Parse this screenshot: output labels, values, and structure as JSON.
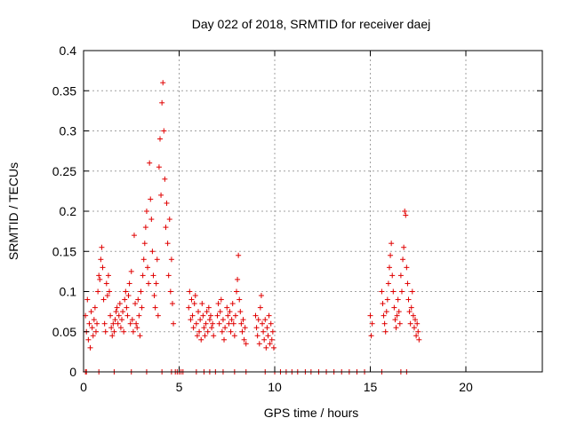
{
  "chart_data": {
    "type": "scatter",
    "title": "Day 022 of 2018, SRMTID for receiver daej",
    "xlabel": "GPS time / hours",
    "ylabel": "SRMTID / TECUs",
    "xlim": [
      0,
      24
    ],
    "ylim": [
      0,
      0.4
    ],
    "xticks": [
      0,
      5,
      10,
      15,
      20
    ],
    "yticks": [
      0,
      0.05,
      0.1,
      0.15,
      0.2,
      0.25,
      0.3,
      0.35,
      0.4
    ],
    "xtick_labels": [
      "0",
      "5",
      "10",
      "15",
      "20"
    ],
    "ytick_labels": [
      "0",
      "0.05",
      "0.1",
      "0.15",
      "0.2",
      "0.25",
      "0.3",
      "0.35",
      "0.4"
    ],
    "grid": true,
    "marker": "+",
    "color": "#e00000",
    "series": [
      {
        "name": "SRMTID",
        "points": [
          [
            0.1,
            0.07
          ],
          [
            0.15,
            0.05
          ],
          [
            0.2,
            0.09
          ],
          [
            0.25,
            0.04
          ],
          [
            0.3,
            0.06
          ],
          [
            0.35,
            0.03
          ],
          [
            0.4,
            0.075
          ],
          [
            0.45,
            0.055
          ],
          [
            0.5,
            0.045
          ],
          [
            0.55,
            0.065
          ],
          [
            0.6,
            0.08
          ],
          [
            0.65,
            0.05
          ],
          [
            0.7,
            0.06
          ],
          [
            0.75,
            0.1
          ],
          [
            0.8,
            0.12
          ],
          [
            0.85,
            0.115
          ],
          [
            0.9,
            0.14
          ],
          [
            0.95,
            0.155
          ],
          [
            1.0,
            0.13
          ],
          [
            1.05,
            0.09
          ],
          [
            1.1,
            0.06
          ],
          [
            1.15,
            0.05
          ],
          [
            1.2,
            0.11
          ],
          [
            1.25,
            0.095
          ],
          [
            1.3,
            0.12
          ],
          [
            1.35,
            0.1
          ],
          [
            1.4,
            0.07
          ],
          [
            1.45,
            0.055
          ],
          [
            1.5,
            0.045
          ],
          [
            1.55,
            0.06
          ],
          [
            1.6,
            0.05
          ],
          [
            1.65,
            0.065
          ],
          [
            1.7,
            0.075
          ],
          [
            1.75,
            0.08
          ],
          [
            1.8,
            0.06
          ],
          [
            1.85,
            0.07
          ],
          [
            1.9,
            0.085
          ],
          [
            1.95,
            0.055
          ],
          [
            2.0,
            0.065
          ],
          [
            2.05,
            0.075
          ],
          [
            2.1,
            0.05
          ],
          [
            2.15,
            0.09
          ],
          [
            2.2,
            0.1
          ],
          [
            2.25,
            0.08
          ],
          [
            2.3,
            0.07
          ],
          [
            2.35,
            0.095
          ],
          [
            2.4,
            0.11
          ],
          [
            2.45,
            0.06
          ],
          [
            2.5,
            0.125
          ],
          [
            2.55,
            0.065
          ],
          [
            2.6,
            0.05
          ],
          [
            2.65,
            0.17
          ],
          [
            2.7,
            0.085
          ],
          [
            2.75,
            0.06
          ],
          [
            2.8,
            0.055
          ],
          [
            2.85,
            0.09
          ],
          [
            2.9,
            0.07
          ],
          [
            2.95,
            0.045
          ],
          [
            3.0,
            0.1
          ],
          [
            3.05,
            0.08
          ],
          [
            3.1,
            0.12
          ],
          [
            3.15,
            0.14
          ],
          [
            3.2,
            0.16
          ],
          [
            3.25,
            0.18
          ],
          [
            3.3,
            0.2
          ],
          [
            3.35,
            0.13
          ],
          [
            3.4,
            0.11
          ],
          [
            3.45,
            0.26
          ],
          [
            3.5,
            0.215
          ],
          [
            3.55,
            0.19
          ],
          [
            3.6,
            0.15
          ],
          [
            3.65,
            0.12
          ],
          [
            3.7,
            0.095
          ],
          [
            3.75,
            0.08
          ],
          [
            3.8,
            0.11
          ],
          [
            3.85,
            0.14
          ],
          [
            3.9,
            0.07
          ],
          [
            3.95,
            0.255
          ],
          [
            4.0,
            0.29
          ],
          [
            4.05,
            0.22
          ],
          [
            4.1,
            0.335
          ],
          [
            4.15,
            0.36
          ],
          [
            4.2,
            0.3
          ],
          [
            4.25,
            0.24
          ],
          [
            4.3,
            0.18
          ],
          [
            4.35,
            0.21
          ],
          [
            4.4,
            0.16
          ],
          [
            4.45,
            0.12
          ],
          [
            4.5,
            0.19
          ],
          [
            4.55,
            0.1
          ],
          [
            4.6,
            0.14
          ],
          [
            4.65,
            0.085
          ],
          [
            4.7,
            0.06
          ],
          [
            5.5,
            0.08
          ],
          [
            5.55,
            0.1
          ],
          [
            5.6,
            0.065
          ],
          [
            5.65,
            0.09
          ],
          [
            5.7,
            0.07
          ],
          [
            5.75,
            0.055
          ],
          [
            5.8,
            0.085
          ],
          [
            5.85,
            0.095
          ],
          [
            5.9,
            0.06
          ],
          [
            5.95,
            0.045
          ],
          [
            6.0,
            0.075
          ],
          [
            6.05,
            0.05
          ],
          [
            6.1,
            0.065
          ],
          [
            6.15,
            0.04
          ],
          [
            6.2,
            0.085
          ],
          [
            6.25,
            0.07
          ],
          [
            6.3,
            0.055
          ],
          [
            6.35,
            0.045
          ],
          [
            6.4,
            0.06
          ],
          [
            6.45,
            0.075
          ],
          [
            6.5,
            0.05
          ],
          [
            6.55,
            0.08
          ],
          [
            6.6,
            0.065
          ],
          [
            6.65,
            0.07
          ],
          [
            6.7,
            0.055
          ],
          [
            6.75,
            0.06
          ],
          [
            6.8,
            0.045
          ],
          [
            7.0,
            0.07
          ],
          [
            7.05,
            0.085
          ],
          [
            7.1,
            0.06
          ],
          [
            7.15,
            0.075
          ],
          [
            7.2,
            0.09
          ],
          [
            7.25,
            0.05
          ],
          [
            7.3,
            0.065
          ],
          [
            7.35,
            0.04
          ],
          [
            7.4,
            0.055
          ],
          [
            7.5,
            0.08
          ],
          [
            7.55,
            0.07
          ],
          [
            7.6,
            0.06
          ],
          [
            7.65,
            0.075
          ],
          [
            7.7,
            0.05
          ],
          [
            7.75,
            0.065
          ],
          [
            7.8,
            0.085
          ],
          [
            7.85,
            0.06
          ],
          [
            7.9,
            0.045
          ],
          [
            7.95,
            0.07
          ],
          [
            8.0,
            0.1
          ],
          [
            8.05,
            0.115
          ],
          [
            8.1,
            0.145
          ],
          [
            8.15,
            0.09
          ],
          [
            8.2,
            0.075
          ],
          [
            8.25,
            0.06
          ],
          [
            8.3,
            0.05
          ],
          [
            8.35,
            0.065
          ],
          [
            8.4,
            0.04
          ],
          [
            8.45,
            0.055
          ],
          [
            8.5,
            0.035
          ],
          [
            9.0,
            0.07
          ],
          [
            9.05,
            0.055
          ],
          [
            9.1,
            0.045
          ],
          [
            9.15,
            0.065
          ],
          [
            9.2,
            0.035
          ],
          [
            9.25,
            0.08
          ],
          [
            9.3,
            0.095
          ],
          [
            9.35,
            0.06
          ],
          [
            9.4,
            0.05
          ],
          [
            9.45,
            0.04
          ],
          [
            9.5,
            0.065
          ],
          [
            9.55,
            0.03
          ],
          [
            9.6,
            0.055
          ],
          [
            9.65,
            0.045
          ],
          [
            9.7,
            0.07
          ],
          [
            9.75,
            0.035
          ],
          [
            9.8,
            0.06
          ],
          [
            9.85,
            0.04
          ],
          [
            9.9,
            0.05
          ],
          [
            9.95,
            0.03
          ],
          [
            15.0,
            0.07
          ],
          [
            15.05,
            0.045
          ],
          [
            15.1,
            0.06
          ],
          [
            15.6,
            0.1
          ],
          [
            15.65,
            0.085
          ],
          [
            15.7,
            0.07
          ],
          [
            15.75,
            0.06
          ],
          [
            15.8,
            0.05
          ],
          [
            15.85,
            0.075
          ],
          [
            15.9,
            0.09
          ],
          [
            15.95,
            0.11
          ],
          [
            16.0,
            0.13
          ],
          [
            16.05,
            0.145
          ],
          [
            16.1,
            0.16
          ],
          [
            16.15,
            0.12
          ],
          [
            16.2,
            0.1
          ],
          [
            16.25,
            0.08
          ],
          [
            16.3,
            0.065
          ],
          [
            16.35,
            0.055
          ],
          [
            16.4,
            0.07
          ],
          [
            16.45,
            0.09
          ],
          [
            16.5,
            0.075
          ],
          [
            16.55,
            0.06
          ],
          [
            16.6,
            0.12
          ],
          [
            16.65,
            0.1
          ],
          [
            16.7,
            0.14
          ],
          [
            16.75,
            0.155
          ],
          [
            16.8,
            0.2
          ],
          [
            16.85,
            0.195
          ],
          [
            16.9,
            0.13
          ],
          [
            16.95,
            0.11
          ],
          [
            17.0,
            0.09
          ],
          [
            17.05,
            0.075
          ],
          [
            17.1,
            0.06
          ],
          [
            17.15,
            0.08
          ],
          [
            17.2,
            0.1
          ],
          [
            17.25,
            0.07
          ],
          [
            17.3,
            0.055
          ],
          [
            17.35,
            0.065
          ],
          [
            17.4,
            0.045
          ],
          [
            17.45,
            0.06
          ],
          [
            17.5,
            0.05
          ],
          [
            17.55,
            0.04
          ],
          [
            0.1,
            0
          ],
          [
            0.15,
            0
          ],
          [
            0.8,
            0
          ],
          [
            1.6,
            0
          ],
          [
            2.5,
            0
          ],
          [
            3.3,
            0
          ],
          [
            4.1,
            0
          ],
          [
            4.6,
            0
          ],
          [
            4.8,
            0
          ],
          [
            4.9,
            0
          ],
          [
            5.0,
            0
          ],
          [
            5.1,
            0
          ],
          [
            5.2,
            0
          ],
          [
            5.9,
            0
          ],
          [
            6.3,
            0
          ],
          [
            6.6,
            0
          ],
          [
            6.9,
            0
          ],
          [
            7.3,
            0
          ],
          [
            7.9,
            0
          ],
          [
            8.5,
            0
          ],
          [
            9.5,
            0
          ],
          [
            10.0,
            0
          ],
          [
            10.3,
            0
          ],
          [
            10.6,
            0
          ],
          [
            10.9,
            0
          ],
          [
            11.2,
            0
          ],
          [
            11.6,
            0
          ],
          [
            11.9,
            0
          ],
          [
            12.3,
            0
          ],
          [
            12.7,
            0
          ],
          [
            13.1,
            0
          ],
          [
            13.5,
            0
          ],
          [
            13.9,
            0
          ],
          [
            14.3,
            0
          ],
          [
            14.7,
            0
          ],
          [
            15.6,
            0
          ],
          [
            16.6,
            0
          ],
          [
            16.9,
            0
          ]
        ]
      }
    ]
  }
}
